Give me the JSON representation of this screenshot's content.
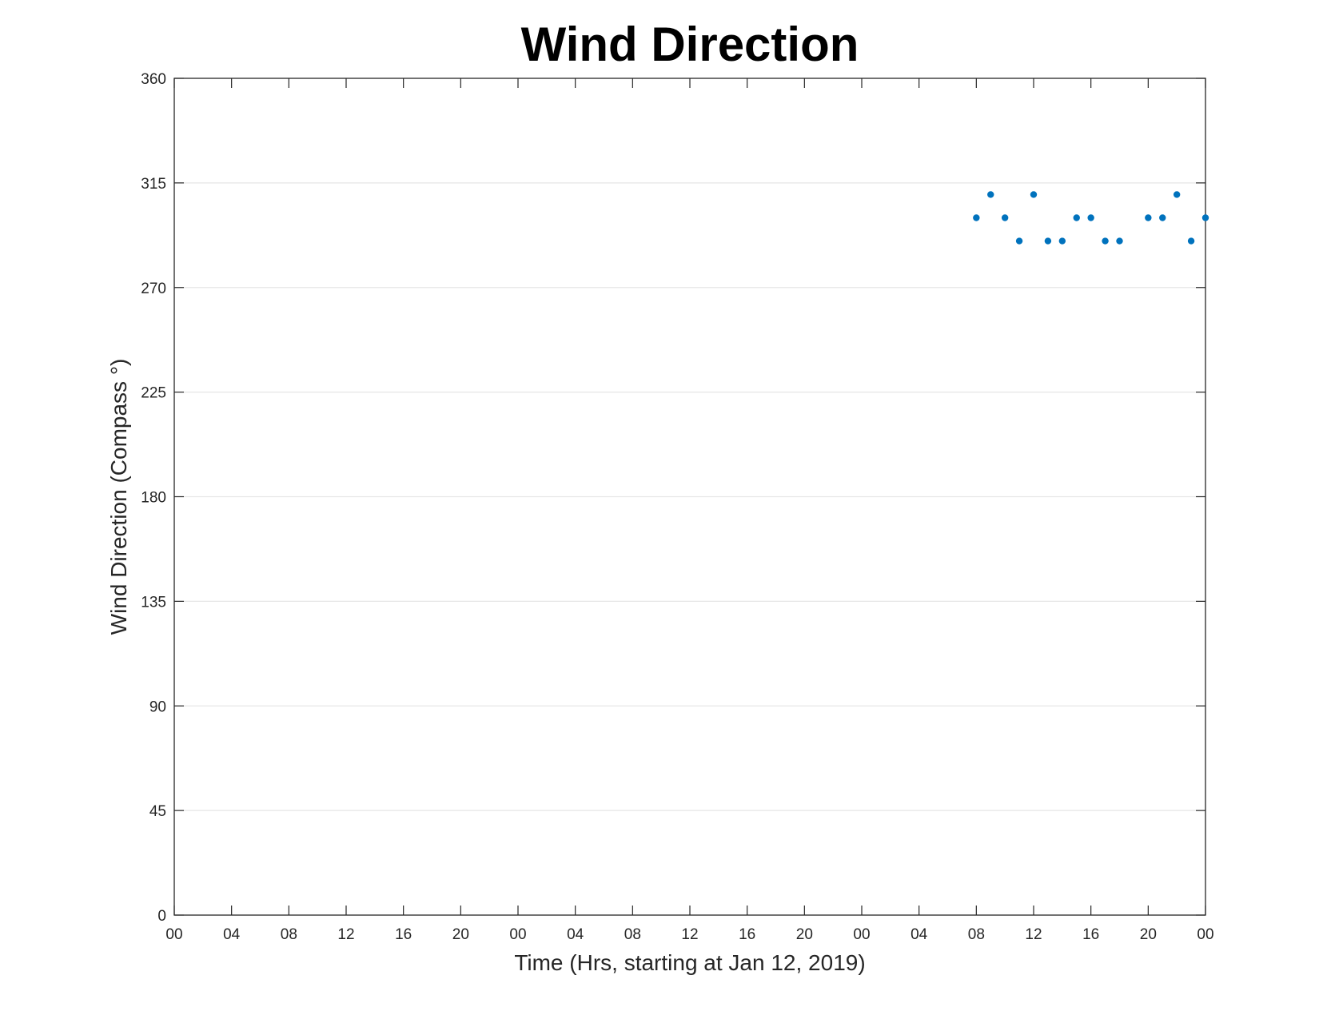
{
  "chart_data": {
    "type": "scatter",
    "title": "Wind Direction",
    "xlabel": "Time (Hrs, starting at Jan 12, 2019)",
    "ylabel": "Wind Direction (Compass °)",
    "x_tick_labels": [
      "00",
      "04",
      "08",
      "12",
      "16",
      "20",
      "00",
      "04",
      "08",
      "12",
      "16",
      "20",
      "00",
      "04",
      "08",
      "12",
      "16",
      "20",
      "00"
    ],
    "x_tick_hours": [
      0,
      4,
      8,
      12,
      16,
      20,
      24,
      28,
      32,
      36,
      40,
      44,
      48,
      52,
      56,
      60,
      64,
      68,
      72
    ],
    "xlim_hours": [
      0,
      72
    ],
    "y_ticks": [
      0,
      45,
      90,
      135,
      180,
      225,
      270,
      315,
      360
    ],
    "ylim": [
      0,
      360
    ],
    "grid": "horizontal",
    "series": [
      {
        "color": "#0072BD",
        "x_hours": [
          56,
          57,
          58,
          59,
          60,
          61,
          62,
          63,
          64,
          65,
          66,
          68,
          69,
          70,
          71,
          72
        ],
        "values": [
          300,
          310,
          300,
          290,
          310,
          290,
          290,
          300,
          300,
          290,
          290,
          300,
          300,
          310,
          290,
          300
        ]
      }
    ]
  }
}
